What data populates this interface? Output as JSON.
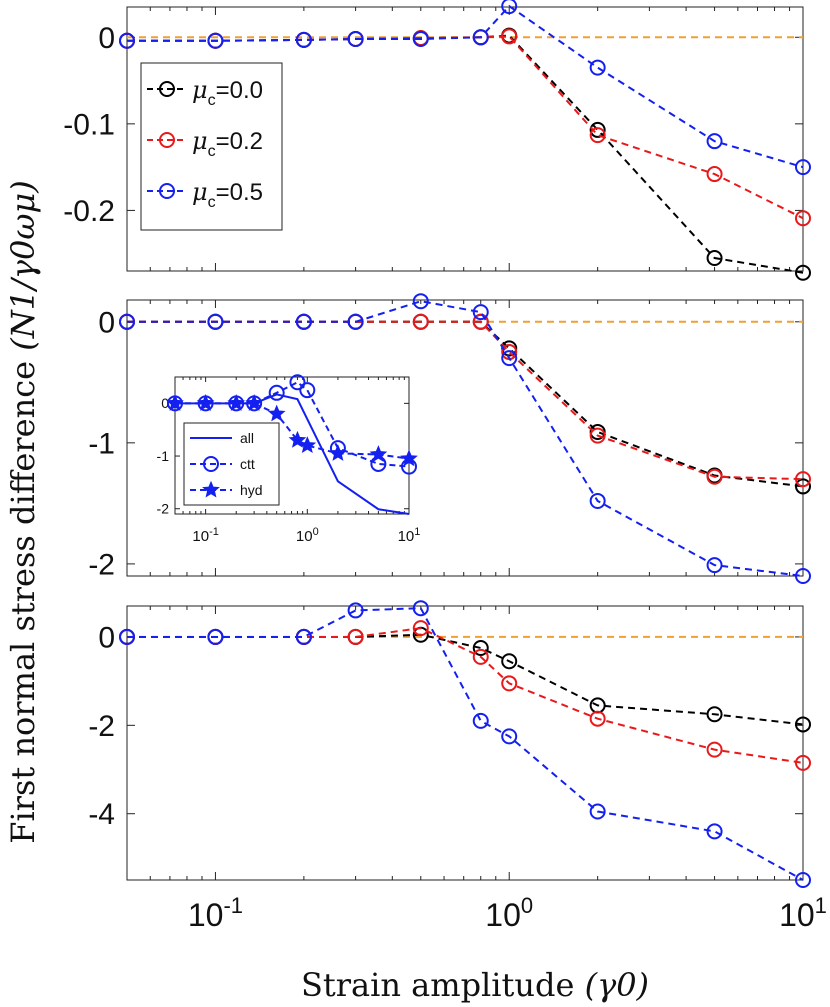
{
  "figure": {
    "ylabel": "First normal stress difference",
    "ylabel_math": "(N1/γ0ωμ)",
    "xlabel": "Strain amplitude",
    "xlabel_math": "(γ0)",
    "x_tick_labels": [
      {
        "base": "10",
        "exp": "-1"
      },
      {
        "base": "10",
        "exp": "0"
      },
      {
        "base": "10",
        "exp": "1"
      }
    ]
  },
  "colors": {
    "black": "#000000",
    "red": "#e8191b",
    "blue": "#1420f0",
    "orange": "#f0a030"
  },
  "chart_data": [
    {
      "type": "line",
      "panel": "top",
      "xscale": "log",
      "xlim": [
        0.05,
        10
      ],
      "ylim": [
        -0.27,
        0.035
      ],
      "yticks": [
        0,
        -0.1,
        -0.2
      ],
      "ytick_labels": [
        "0",
        "-0.1",
        "-0.2"
      ],
      "x": [
        0.05,
        0.1,
        0.2,
        0.3,
        0.5,
        0.8,
        1,
        2,
        5,
        10
      ],
      "reference_line": {
        "y": 0,
        "color": "#f0a030"
      },
      "series": [
        {
          "name": "μc=0.0",
          "color": "#000000",
          "values": [
            -0.004,
            -0.004,
            -0.003,
            -0.002,
            -0.001,
            0.0,
            0.002,
            -0.107,
            -0.255,
            -0.272
          ]
        },
        {
          "name": "μc=0.2",
          "color": "#e8191b",
          "values": [
            -0.004,
            -0.004,
            -0.003,
            -0.002,
            -0.001,
            0.0,
            0.001,
            -0.113,
            -0.158,
            -0.209
          ]
        },
        {
          "name": "μc=0.5",
          "color": "#1420f0",
          "values": [
            -0.004,
            -0.004,
            -0.003,
            -0.002,
            -0.002,
            0.0,
            0.036,
            -0.035,
            -0.12,
            -0.15
          ]
        }
      ],
      "legend": {
        "placement": "left",
        "entries": [
          {
            "symbol": "μ",
            "sub": "c",
            "value": "=0.0",
            "color": "#000000"
          },
          {
            "symbol": "μ",
            "sub": "c",
            "value": "=0.2",
            "color": "#e8191b"
          },
          {
            "symbol": "μ",
            "sub": "c",
            "value": "=0.5",
            "color": "#1420f0"
          }
        ]
      }
    },
    {
      "type": "line",
      "panel": "middle",
      "xscale": "log",
      "xlim": [
        0.05,
        10
      ],
      "ylim": [
        -2.1,
        0.18
      ],
      "yticks": [
        0,
        -1,
        -2
      ],
      "ytick_labels": [
        "0",
        "-1",
        "-2"
      ],
      "x": [
        0.05,
        0.1,
        0.2,
        0.3,
        0.5,
        0.8,
        1,
        2,
        5,
        10
      ],
      "reference_line": {
        "y": 0,
        "color": "#f0a030"
      },
      "series": [
        {
          "name": "μc=0.0",
          "color": "#000000",
          "values": [
            0.0,
            0.0,
            0.0,
            0.0,
            0.0,
            0.0,
            -0.22,
            -0.91,
            -1.27,
            -1.36
          ]
        },
        {
          "name": "μc=0.2",
          "color": "#e8191b",
          "values": [
            0.0,
            0.0,
            0.0,
            0.0,
            0.0,
            0.0,
            -0.25,
            -0.94,
            -1.28,
            -1.3
          ]
        },
        {
          "name": "μc=0.5",
          "color": "#1420f0",
          "values": [
            0.0,
            0.0,
            0.0,
            0.0,
            0.17,
            0.08,
            -0.3,
            -1.48,
            -2.01,
            -2.1
          ]
        }
      ]
    },
    {
      "type": "line",
      "panel": "middle-inset",
      "xscale": "log",
      "xlim": [
        0.05,
        10
      ],
      "ylim": [
        -2.1,
        0.5
      ],
      "yticks": [
        0,
        -1,
        -2
      ],
      "ytick_labels": [
        "0",
        "-1",
        "-2"
      ],
      "x_tick_labels": [
        {
          "base": "10",
          "exp": "-1"
        },
        {
          "base": "10",
          "exp": "0"
        },
        {
          "base": "10",
          "exp": "1"
        }
      ],
      "series": [
        {
          "name": "all",
          "color": "#1420f0",
          "style": "solid",
          "marker": "none",
          "x": [
            0.05,
            0.1,
            0.2,
            0.3,
            0.5,
            0.8,
            1,
            2,
            5,
            10
          ],
          "values": [
            0.0,
            0.0,
            0.0,
            0.0,
            0.17,
            0.08,
            -0.3,
            -1.48,
            -2.01,
            -2.1
          ]
        },
        {
          "name": "ctt",
          "color": "#1420f0",
          "style": "dashed",
          "marker": "circle",
          "x": [
            0.05,
            0.1,
            0.2,
            0.3,
            0.5,
            0.8,
            1,
            2,
            5,
            10
          ],
          "values": [
            0.0,
            0.0,
            0.0,
            0.0,
            0.2,
            0.4,
            0.25,
            -0.85,
            -1.15,
            -1.2
          ]
        },
        {
          "name": "hyd",
          "color": "#1420f0",
          "style": "dashed",
          "marker": "star",
          "x": [
            0.05,
            0.1,
            0.2,
            0.3,
            0.5,
            0.8,
            1,
            2,
            5,
            10
          ],
          "values": [
            0.0,
            0.0,
            0.0,
            0.0,
            -0.2,
            -0.7,
            -0.8,
            -0.95,
            -0.97,
            -1.05
          ]
        }
      ],
      "legend": {
        "placement": "bottom-left",
        "entries": [
          "all",
          "ctt",
          "hyd"
        ]
      }
    },
    {
      "type": "line",
      "panel": "bottom",
      "xscale": "log",
      "xlim": [
        0.05,
        10
      ],
      "ylim": [
        -5.5,
        0.7
      ],
      "yticks": [
        0,
        -2,
        -4
      ],
      "ytick_labels": [
        "0",
        "-2",
        "-4"
      ],
      "x": [
        0.05,
        0.1,
        0.2,
        0.3,
        0.5,
        0.8,
        1,
        2,
        5,
        10
      ],
      "reference_line": {
        "y": 0,
        "color": "#f0a030"
      },
      "series": [
        {
          "name": "μc=0.0",
          "color": "#000000",
          "values": [
            0.0,
            0.0,
            0.0,
            0.0,
            0.05,
            -0.25,
            -0.55,
            -1.55,
            -1.75,
            -1.98
          ]
        },
        {
          "name": "μc=0.2",
          "color": "#e8191b",
          "values": [
            0.0,
            0.0,
            0.0,
            0.0,
            0.2,
            -0.45,
            -1.05,
            -1.85,
            -2.55,
            -2.85
          ]
        },
        {
          "name": "μc=0.5",
          "color": "#1420f0",
          "values": [
            0.0,
            0.0,
            0.0,
            0.6,
            0.65,
            -1.9,
            -2.25,
            -3.95,
            -4.4,
            -5.5
          ]
        }
      ]
    }
  ]
}
